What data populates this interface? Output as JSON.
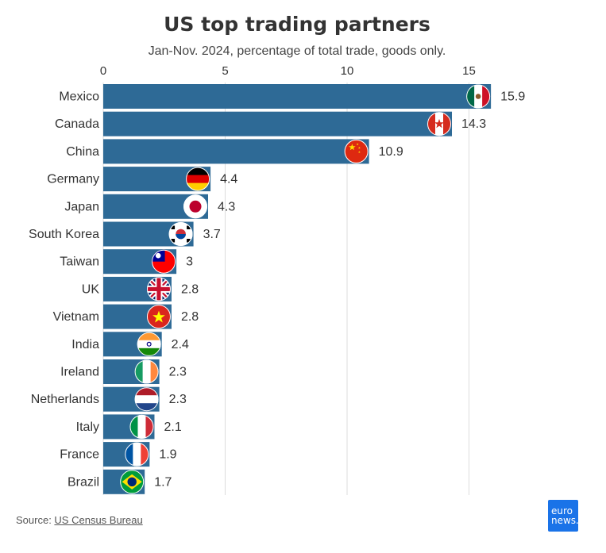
{
  "chart_data": {
    "type": "bar",
    "orientation": "horizontal",
    "title": "US top trading partners",
    "subtitle": "Jan-Nov. 2024, percentage of total trade, goods only.",
    "categories": [
      "Mexico",
      "Canada",
      "China",
      "Germany",
      "Japan",
      "South Korea",
      "Taiwan",
      "UK",
      "Vietnam",
      "India",
      "Ireland",
      "Netherlands",
      "Italy",
      "France",
      "Brazil"
    ],
    "values": [
      15.9,
      14.3,
      10.9,
      4.4,
      4.3,
      3.7,
      3,
      2.8,
      2.8,
      2.4,
      2.3,
      2.3,
      2.1,
      1.9,
      1.7
    ],
    "value_labels": [
      "15.9",
      "14.3",
      "10.9",
      "4.4",
      "4.3",
      "3.7",
      "3",
      "2.8",
      "2.8",
      "2.4",
      "2.3",
      "2.3",
      "2.1",
      "1.9",
      "1.7"
    ],
    "xticks": [
      0,
      5,
      10,
      15
    ],
    "xlim": [
      0,
      16
    ],
    "xaxis_position": "top",
    "grid": true,
    "legend": "none",
    "bar_color": "#2e6a96",
    "grid_color": "#dddddd",
    "flags": [
      "mexico-flag",
      "canada-flag",
      "china-flag",
      "germany-flag",
      "japan-flag",
      "south-korea-flag",
      "taiwan-flag",
      "uk-flag",
      "vietnam-flag",
      "india-flag",
      "ireland-flag",
      "netherlands-flag",
      "italy-flag",
      "france-flag",
      "brazil-flag"
    ]
  },
  "footer": {
    "source_prefix": "Source: ",
    "source_link": "US Census Bureau",
    "logo_line1": "euro",
    "logo_line2": "news."
  }
}
